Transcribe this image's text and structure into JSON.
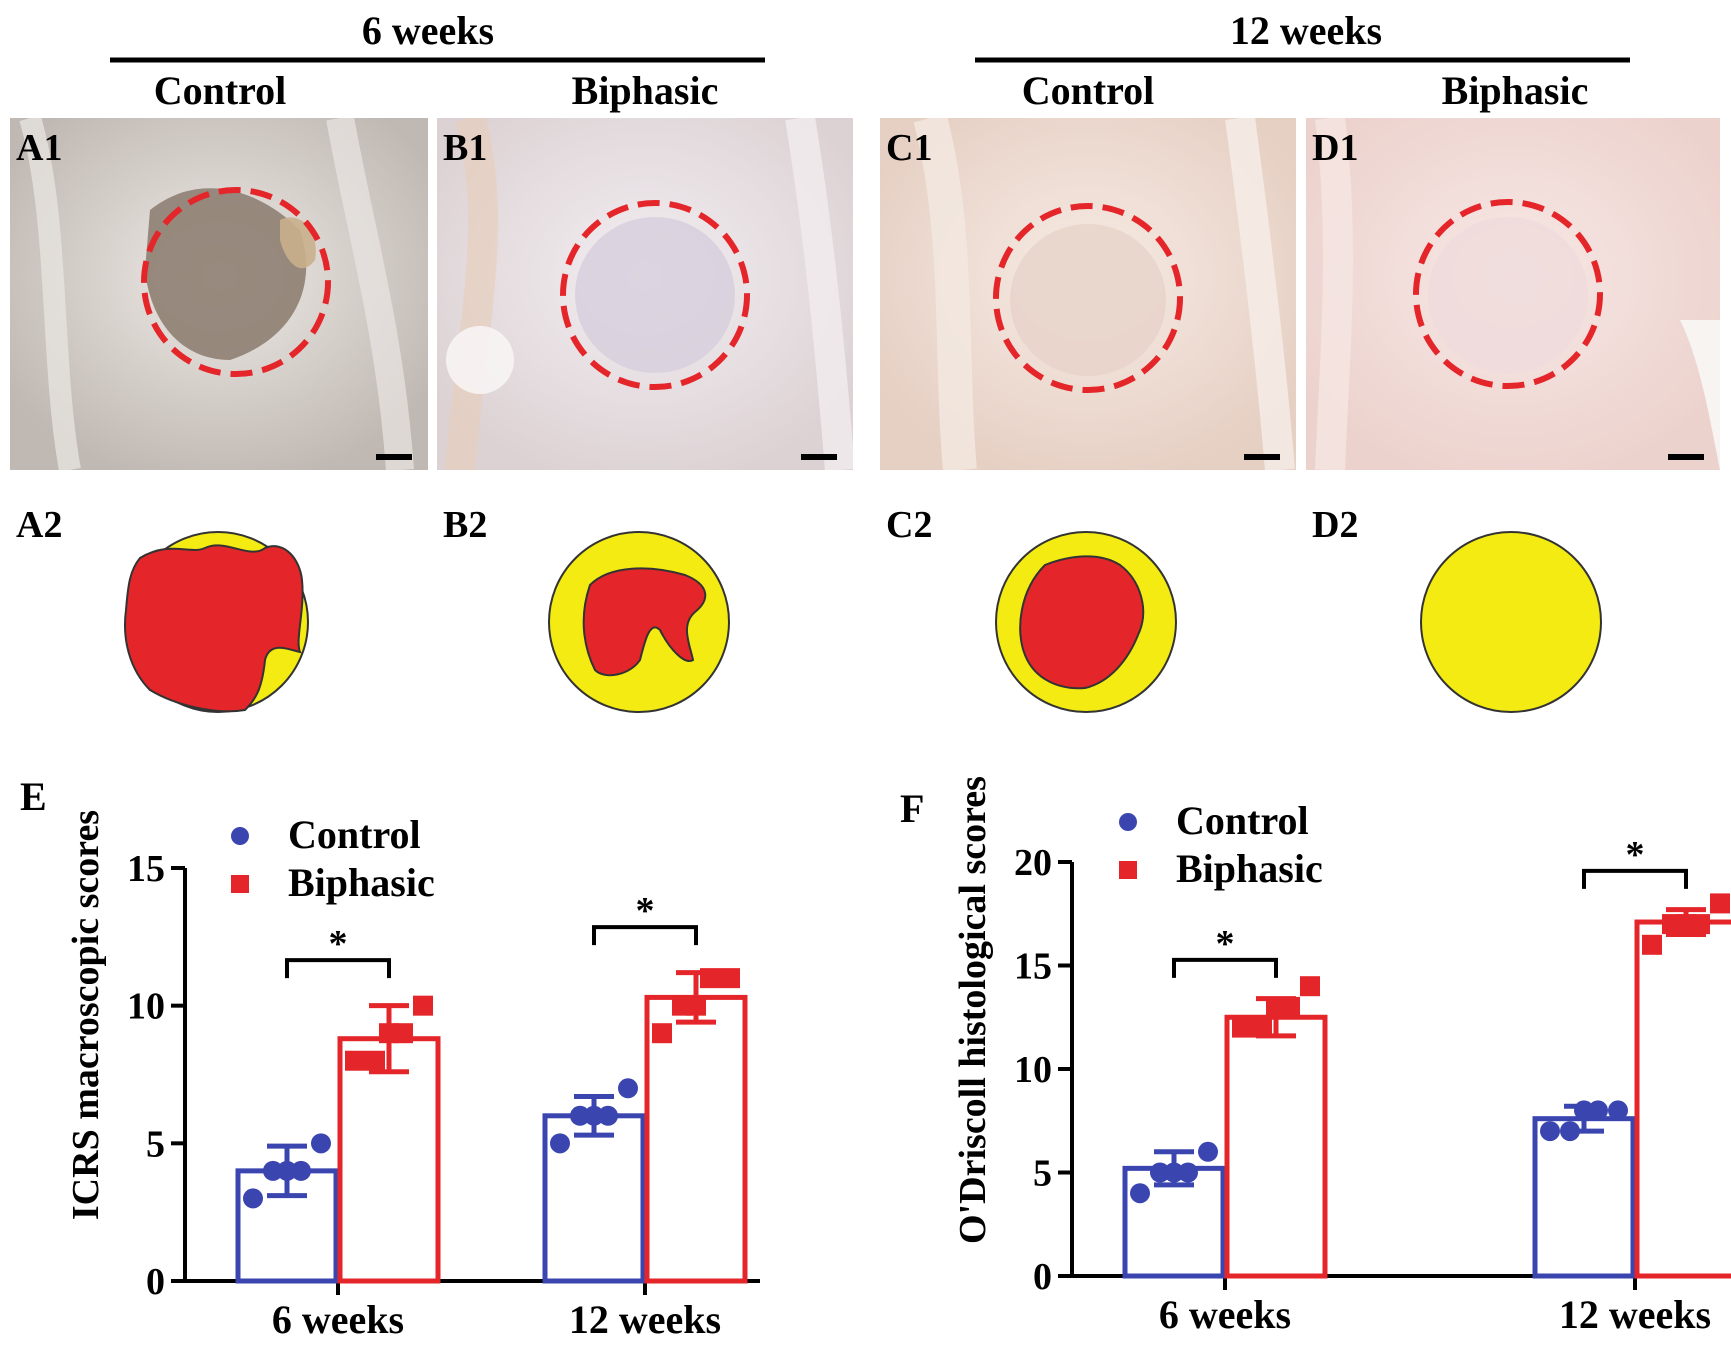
{
  "headers": {
    "group_6w": "6 weeks",
    "group_12w": "12 weeks",
    "control": "Control",
    "biphasic": "Biphasic"
  },
  "photo_panels": [
    {
      "label": "A1",
      "tone": "#cfc9c4",
      "defect": "#8e7f72",
      "dark_defect": true
    },
    {
      "label": "B1",
      "tone": "#e0d8dc",
      "defect": "#d6cedc",
      "dark_defect": false
    },
    {
      "label": "C1",
      "tone": "#ecd9cf",
      "defect": "#e8d4ca",
      "dark_defect": false
    },
    {
      "label": "D1",
      "tone": "#f1dcd7",
      "defect": "#efdbdc",
      "dark_defect": false
    }
  ],
  "schematic_panels": [
    {
      "label": "A2",
      "red_fraction": 0.85
    },
    {
      "label": "B2",
      "red_fraction": 0.45
    },
    {
      "label": "C2",
      "red_fraction": 0.55
    },
    {
      "label": "D2",
      "red_fraction": 0.0
    }
  ],
  "colors": {
    "control": "#3a45b0",
    "biphasic": "#e4262a",
    "defect_circle": "#e4262a",
    "schematic_fill": "#f3eb12",
    "schematic_red": "#e4262a"
  },
  "chart_data": [
    {
      "type": "bar",
      "panel_label": "E",
      "ylabel": "ICRS macroscopic scores",
      "ylim": [
        0,
        15
      ],
      "yticks": [
        0,
        5,
        10,
        15
      ],
      "categories": [
        "6 weeks",
        "12 weeks"
      ],
      "legend": [
        "Control",
        "Biphasic"
      ],
      "series": [
        {
          "name": "Control",
          "marker": "circle",
          "values": [
            4.0,
            6.0
          ],
          "sd": [
            0.9,
            0.7
          ],
          "points": [
            [
              3,
              4,
              4,
              4,
              5
            ],
            [
              5,
              6,
              6,
              6,
              7
            ]
          ]
        },
        {
          "name": "Biphasic",
          "marker": "square",
          "values": [
            8.8,
            10.3
          ],
          "sd": [
            1.2,
            0.9
          ],
          "points": [
            [
              8,
              8,
              9,
              9,
              10
            ],
            [
              9,
              10,
              10,
              11,
              11
            ]
          ]
        }
      ],
      "significance": [
        {
          "category": "6 weeks",
          "label": "*"
        },
        {
          "category": "12 weeks",
          "label": "*"
        }
      ]
    },
    {
      "type": "bar",
      "panel_label": "F",
      "ylabel": "O'Driscoll histological scores",
      "ylim": [
        0,
        20
      ],
      "yticks": [
        0,
        5,
        10,
        15,
        20
      ],
      "categories": [
        "6 weeks",
        "12 weeks"
      ],
      "legend": [
        "Control",
        "Biphasic"
      ],
      "series": [
        {
          "name": "Control",
          "marker": "circle",
          "values": [
            5.2,
            7.6
          ],
          "sd": [
            0.8,
            0.6
          ],
          "points": [
            [
              4,
              5,
              5,
              5,
              6
            ],
            [
              7,
              7,
              8,
              8,
              8
            ]
          ]
        },
        {
          "name": "Biphasic",
          "marker": "square",
          "values": [
            12.5,
            17.1
          ],
          "sd": [
            0.9,
            0.6
          ],
          "points": [
            [
              12,
              12,
              13,
              13,
              14
            ],
            [
              16,
              17,
              17,
              17,
              18
            ]
          ]
        }
      ],
      "significance": [
        {
          "category": "6 weeks",
          "label": "*"
        },
        {
          "category": "12 weeks",
          "label": "*"
        }
      ]
    }
  ]
}
